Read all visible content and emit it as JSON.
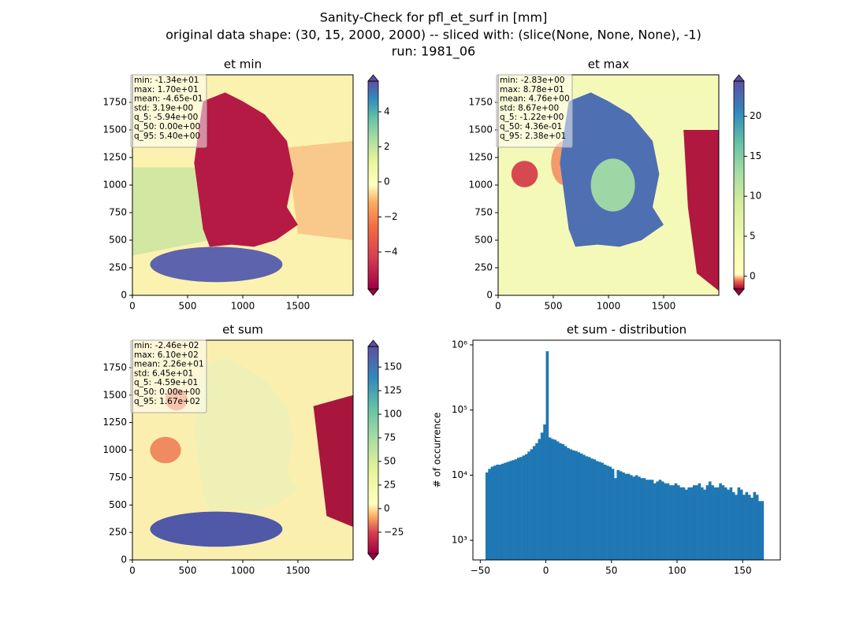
{
  "title": [
    "Sanity-Check for pfl_et_surf in [mm]",
    "original data shape: (30, 15, 2000, 2000) -- sliced with: (slice(None, None, None), -1)",
    "run: 1981_06"
  ],
  "chart_data": [
    {
      "type": "heatmap",
      "title": "et min",
      "xlim": [
        0,
        2000
      ],
      "ylim": [
        0,
        2000
      ],
      "xticks": [
        0,
        500,
        1000,
        1500
      ],
      "yticks": [
        0,
        250,
        500,
        750,
        1000,
        1250,
        1500,
        1750
      ],
      "colorbar": {
        "lim": [
          -6.11,
          5.75
        ],
        "ticks": [
          {
            "value": -4,
            "label": "−4"
          },
          {
            "value": -2,
            "label": "−2"
          },
          0,
          2,
          4
        ]
      },
      "stats": [
        "min: -1.34e+01",
        "max: 1.70e+01",
        "mean: -4.65e-01",
        "std: 3.19e+00",
        "q_5: -5.94e+00",
        "q_50: 0.00e+00",
        "q_95: 5.40e+00"
      ]
    },
    {
      "type": "heatmap",
      "title": "et max",
      "xlim": [
        0,
        2000
      ],
      "ylim": [
        0,
        2000
      ],
      "xticks": [
        0,
        500,
        1000,
        1500
      ],
      "yticks": [
        0,
        250,
        500,
        750,
        1000,
        1250,
        1500,
        1750
      ],
      "colorbar": {
        "lim": [
          -1.6,
          24.4
        ],
        "ticks": [
          0,
          5,
          10,
          15,
          20
        ]
      },
      "stats": [
        "min: -2.83e+00",
        "max: 8.78e+01",
        "mean: 4.76e+00",
        "std: 8.67e+00",
        "q_5: -1.22e+00",
        "q_50: 4.36e-01",
        "q_95: 2.38e+01"
      ]
    },
    {
      "type": "heatmap",
      "title": "et sum",
      "xlim": [
        0,
        2000
      ],
      "ylim": [
        0,
        2000
      ],
      "xticks": [
        0,
        500,
        1000,
        1500
      ],
      "yticks": [
        0,
        250,
        500,
        750,
        1000,
        1250,
        1500,
        1750
      ],
      "colorbar": {
        "lim": [
          -47.7,
          171.8
        ],
        "ticks": [
          {
            "value": -25,
            "label": "−25"
          },
          0,
          25,
          50,
          75,
          100,
          125,
          150
        ]
      },
      "stats": [
        "min: -2.46e+02",
        "max: 6.10e+02",
        "mean: 2.26e+01",
        "std: 6.45e+01",
        "q_5: -4.59e+01",
        "q_50: 0.00e+00",
        "q_95: 1.67e+02"
      ]
    },
    {
      "type": "histogram",
      "title": "et sum - distribution",
      "y_label": "# of occurrence",
      "color": "#1f77b4",
      "log_y": true,
      "xlim": [
        -55.6,
        178.7
      ],
      "ylim": [
        500,
        1180000
      ],
      "xticks": [
        {
          "value": -50,
          "label": "−50"
        },
        0,
        50,
        100,
        150
      ],
      "yticks": [
        {
          "value": 1000,
          "label": "10³"
        },
        {
          "value": 10000,
          "label": "10⁴"
        },
        {
          "value": 100000,
          "label": "10⁵"
        },
        {
          "value": 1000000,
          "label": "10⁶"
        }
      ],
      "bins": [
        -46,
        -44,
        -42,
        -40,
        -38,
        -36,
        -34,
        -32,
        -30,
        -28,
        -26,
        -24,
        -22,
        -20,
        -18,
        -16,
        -14,
        -12,
        -10,
        -8,
        -6,
        -4,
        -2,
        0,
        2,
        4,
        6,
        8,
        10,
        12,
        14,
        16,
        18,
        20,
        22,
        24,
        26,
        28,
        30,
        32,
        34,
        36,
        38,
        40,
        42,
        44,
        46,
        48,
        50,
        52,
        54,
        56,
        58,
        60,
        62,
        64,
        66,
        68,
        70,
        72,
        74,
        76,
        78,
        80,
        82,
        84,
        86,
        88,
        90,
        92,
        94,
        96,
        98,
        100,
        102,
        104,
        106,
        108,
        110,
        112,
        114,
        116,
        118,
        120,
        122,
        124,
        126,
        128,
        130,
        132,
        134,
        136,
        138,
        140,
        142,
        144,
        146,
        148,
        150,
        152,
        154,
        156,
        158,
        160,
        162,
        164,
        166
      ],
      "values": [
        11000,
        12500,
        13500,
        14000,
        14500,
        14500,
        15000,
        15500,
        16000,
        16500,
        17000,
        17500,
        18500,
        19000,
        20000,
        21000,
        23000,
        25000,
        28000,
        31000,
        36000,
        45000,
        60000,
        800000,
        38000,
        36000,
        35000,
        33000,
        31000,
        30000,
        28000,
        26000,
        25000,
        24000,
        23500,
        22500,
        21500,
        20500,
        19500,
        19000,
        18000,
        17500,
        16500,
        16000,
        15500,
        14500,
        14000,
        13500,
        12500,
        9000,
        12000,
        11500,
        11000,
        10500,
        10500,
        10000,
        9500,
        10000,
        9500,
        9000,
        9000,
        8500,
        8500,
        8500,
        7500,
        8000,
        8500,
        8000,
        7500,
        7500,
        7000,
        7000,
        7500,
        7000,
        6500,
        6500,
        6000,
        6500,
        6500,
        7000,
        7000,
        7500,
        6500,
        6000,
        7000,
        8000,
        7000,
        6500,
        6500,
        7500,
        7000,
        6500,
        6000,
        6500,
        5500,
        5000,
        6500,
        6000,
        5000,
        5500,
        5000,
        4500,
        5500,
        5000,
        4000,
        4000
      ]
    }
  ]
}
